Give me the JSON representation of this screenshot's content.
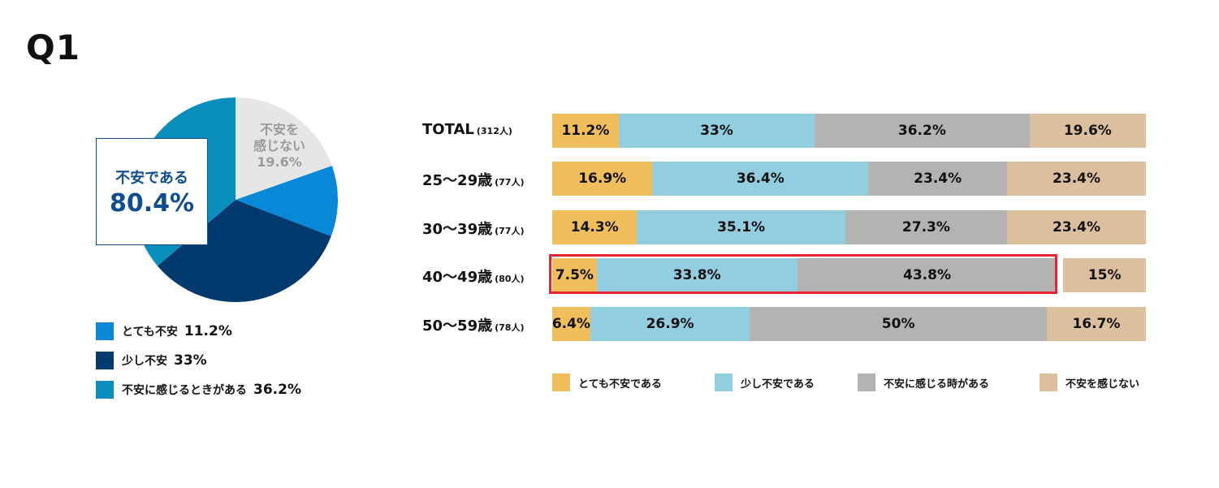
{
  "title": "Q1",
  "colors": {
    "very_anxious": "#f0be5a",
    "a_little": "#92cde0",
    "sometimes": "#b3b3b3",
    "not_anxious": "#dcbf9f",
    "pie_very": "#0a88d8",
    "pie_little": "#033a6e",
    "pie_sometimes": "#0a8fbd",
    "pie_not": "#e6e6e6",
    "highlight": "#e8242f"
  },
  "pie": {
    "callout_label": "不安である",
    "callout_value": "80.4%",
    "not_anxious_label_line1": "不安を",
    "not_anxious_label_line2": "感じない",
    "not_anxious_value": "19.6%",
    "legend": [
      {
        "label": "とても不安",
        "value": "11.2%"
      },
      {
        "label": "少し不安",
        "value": "33%"
      },
      {
        "label": "不安に感じるときがある",
        "value": "36.2%"
      }
    ]
  },
  "bar_legend": [
    "とても不安である",
    "少し不安である",
    "不安に感じる時がある",
    "不安を感じない"
  ],
  "chart_data": [
    {
      "type": "pie",
      "slices": [
        {
          "name": "とても不安",
          "value": 11.2
        },
        {
          "name": "少し不安",
          "value": 33
        },
        {
          "name": "不安に感じるときがある",
          "value": 36.2
        },
        {
          "name": "不安を感じない",
          "value": 19.6
        }
      ]
    },
    {
      "type": "bar",
      "stacked": true,
      "orientation": "horizontal",
      "categories": [
        "TOTAL",
        "25〜29歳",
        "30〜39歳",
        "40〜49歳",
        "50〜59歳"
      ],
      "category_counts": [
        "(312人)",
        "(77人)",
        "(77人)",
        "(80人)",
        "(78人)"
      ],
      "series": [
        {
          "name": "とても不安である",
          "values": [
            11.2,
            16.9,
            14.3,
            7.5,
            6.4
          ],
          "labels": [
            "11.2%",
            "16.9%",
            "14.3%",
            "7.5%",
            "6.4%"
          ]
        },
        {
          "name": "少し不安である",
          "values": [
            33,
            36.4,
            35.1,
            33.8,
            26.9
          ],
          "labels": [
            "33%",
            "36.4%",
            "35.1%",
            "33.8%",
            "26.9%"
          ]
        },
        {
          "name": "不安に感じる時がある",
          "values": [
            36.2,
            23.4,
            27.3,
            43.8,
            50
          ],
          "labels": [
            "36.2%",
            "23.4%",
            "27.3%",
            "43.8%",
            "50%"
          ]
        },
        {
          "name": "不安を感じない",
          "values": [
            19.6,
            23.4,
            23.4,
            15,
            16.7
          ],
          "labels": [
            "19.6%",
            "23.4%",
            "23.4%",
            "15%",
            "16.7%"
          ]
        }
      ],
      "highlighted_category": "40〜49歳"
    }
  ]
}
